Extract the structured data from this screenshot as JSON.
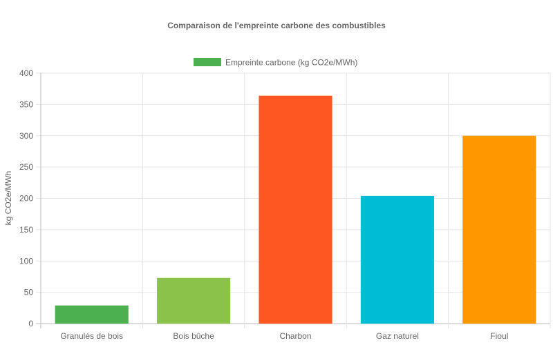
{
  "chart_data": {
    "type": "bar",
    "title": "Comparaison de l'empreinte carbone des combustibles",
    "xlabel": "",
    "ylabel": "kg CO2e/MWh",
    "categories": [
      "Granulés de bois",
      "Bois bûche",
      "Charbon",
      "Gaz naturel",
      "Fioul"
    ],
    "series": [
      {
        "name": "Empreinte carbone (kg CO2e/MWh)",
        "values": [
          29,
          73,
          364,
          204,
          300
        ],
        "colors": [
          "#4caf50",
          "#8bc34a",
          "#ff5722",
          "#00bcd4",
          "#ff9800"
        ]
      }
    ],
    "ylim": [
      0,
      400
    ],
    "yticks": [
      "0",
      "50",
      "100",
      "150",
      "200",
      "250",
      "300",
      "350",
      "400"
    ],
    "grid": true,
    "legend_position": "top"
  }
}
